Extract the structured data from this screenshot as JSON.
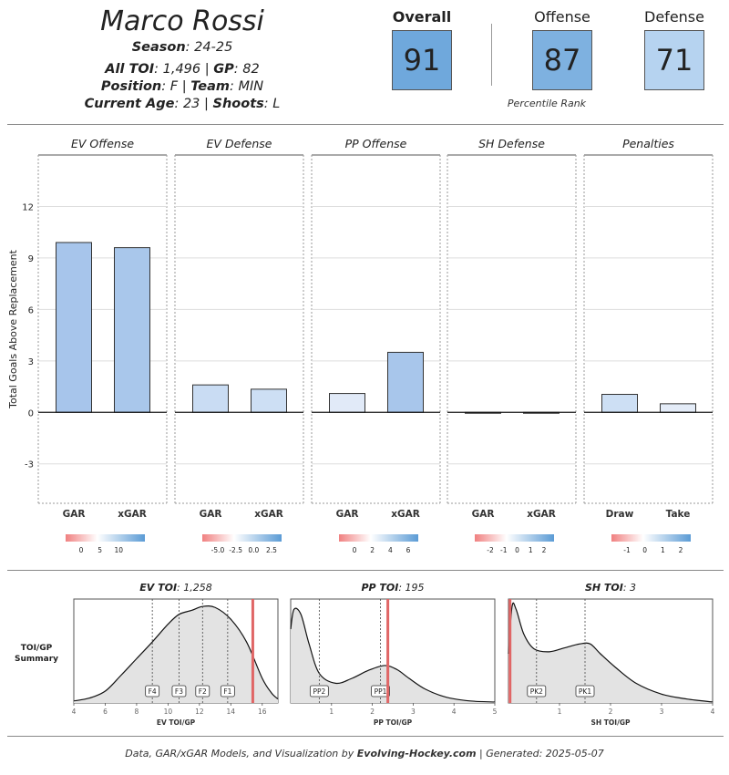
{
  "header": {
    "player_name": "Marco Rossi",
    "season_label": "Season",
    "season_value": "24-25",
    "toi_label": "All TOI",
    "toi_value": "1,496",
    "gp_label": "GP",
    "gp_value": "82",
    "position_label": "Position",
    "position_value": "F",
    "team_label": "Team",
    "team_value": "MIN",
    "age_label": "Current Age",
    "age_value": "23",
    "shoots_label": "Shoots",
    "shoots_value": "L"
  },
  "ranks": {
    "overall": {
      "label": "Overall",
      "value": "91",
      "color": "#6fa8dc"
    },
    "offense": {
      "label": "Offense",
      "value": "87",
      "color": "#7eb1e0"
    },
    "defense": {
      "label": "Defense",
      "value": "71",
      "color": "#b6d3f0"
    },
    "caption": "Percentile Rank"
  },
  "chart_data": [
    {
      "type": "bar",
      "ylabel": "Total Goals Above Replacement",
      "y_ticks": [
        12,
        9,
        6,
        3,
        0,
        -3
      ],
      "ylim": [
        -5.3,
        15
      ],
      "panels": [
        {
          "title": "EV Offense",
          "categories": [
            "GAR",
            "xGAR"
          ],
          "values": [
            9.9,
            9.6
          ],
          "colors": [
            "#a7c5eb",
            "#a9c7eb"
          ],
          "legend_ticks": [
            "0",
            "5",
            "10"
          ]
        },
        {
          "title": "EV Defense",
          "categories": [
            "GAR",
            "xGAR"
          ],
          "values": [
            1.6,
            1.35
          ],
          "colors": [
            "#c9dcf3",
            "#cddff4"
          ],
          "legend_ticks": [
            "-5.0",
            "-2.5",
            "0.0",
            "2.5"
          ]
        },
        {
          "title": "PP Offense",
          "categories": [
            "GAR",
            "xGAR"
          ],
          "values": [
            1.1,
            3.5
          ],
          "colors": [
            "#e1eaf8",
            "#a8c6eb"
          ],
          "legend_ticks": [
            "0",
            "2",
            "4",
            "6"
          ]
        },
        {
          "title": "SH Defense",
          "categories": [
            "GAR",
            "xGAR"
          ],
          "values": [
            -0.05,
            -0.03
          ],
          "colors": [
            "#f2dcdc",
            "#ececf4"
          ],
          "legend_ticks": [
            "-2",
            "-1",
            "0",
            "1",
            "2"
          ]
        },
        {
          "title": "Penalties",
          "categories": [
            "Draw",
            "Take"
          ],
          "values": [
            1.05,
            0.5
          ],
          "colors": [
            "#cddff4",
            "#e4ecf8"
          ],
          "legend_ticks": [
            "-1",
            "0",
            "1",
            "2"
          ]
        }
      ]
    },
    {
      "type": "area",
      "row_label_line1": "TOI/GP",
      "row_label_line2": "Summary",
      "panels": [
        {
          "title_label": "EV TOI",
          "title_value": "1,258",
          "xlabel": "EV TOI/GP",
          "xlim": [
            4,
            17
          ],
          "x_ticks": [
            4,
            6,
            8,
            10,
            12,
            14,
            16
          ],
          "density": [
            [
              4,
              0.02
            ],
            [
              5,
              0.05
            ],
            [
              6,
              0.12
            ],
            [
              7,
              0.28
            ],
            [
              8,
              0.45
            ],
            [
              9,
              0.62
            ],
            [
              10,
              0.8
            ],
            [
              10.7,
              0.9
            ],
            [
              11.5,
              0.94
            ],
            [
              12.2,
              0.98
            ],
            [
              13,
              0.97
            ],
            [
              14,
              0.85
            ],
            [
              15,
              0.62
            ],
            [
              16,
              0.25
            ],
            [
              16.6,
              0.1
            ],
            [
              17,
              0.04
            ]
          ],
          "markers": [
            {
              "label": "F4",
              "x": 9.0
            },
            {
              "label": "F3",
              "x": 10.7
            },
            {
              "label": "F2",
              "x": 12.2
            },
            {
              "label": "F1",
              "x": 13.8
            }
          ],
          "player_value": 15.4
        },
        {
          "title_label": "PP TOI",
          "title_value": "195",
          "xlabel": "PP TOI/GP",
          "xlim": [
            0,
            5
          ],
          "x_ticks": [
            1,
            2,
            3,
            4,
            5
          ],
          "density": [
            [
              0,
              0.75
            ],
            [
              0.08,
              0.95
            ],
            [
              0.25,
              0.9
            ],
            [
              0.45,
              0.6
            ],
            [
              0.7,
              0.3
            ],
            [
              1.1,
              0.2
            ],
            [
              1.5,
              0.25
            ],
            [
              1.9,
              0.33
            ],
            [
              2.3,
              0.38
            ],
            [
              2.6,
              0.34
            ],
            [
              2.9,
              0.25
            ],
            [
              3.3,
              0.14
            ],
            [
              3.8,
              0.06
            ],
            [
              4.4,
              0.02
            ],
            [
              5,
              0.01
            ]
          ],
          "markers": [
            {
              "label": "PP2",
              "x": 0.7
            },
            {
              "label": "PP1",
              "x": 2.2
            }
          ],
          "player_value": 2.38
        },
        {
          "title_label": "SH TOI",
          "title_value": "3",
          "xlabel": "SH TOI/GP",
          "xlim": [
            0,
            4
          ],
          "x_ticks": [
            1,
            2,
            3,
            4
          ],
          "density": [
            [
              0,
              0.5
            ],
            [
              0.07,
              0.98
            ],
            [
              0.15,
              0.95
            ],
            [
              0.3,
              0.7
            ],
            [
              0.5,
              0.55
            ],
            [
              0.8,
              0.52
            ],
            [
              1.1,
              0.56
            ],
            [
              1.4,
              0.6
            ],
            [
              1.6,
              0.6
            ],
            [
              1.8,
              0.5
            ],
            [
              2.1,
              0.36
            ],
            [
              2.5,
              0.2
            ],
            [
              3,
              0.09
            ],
            [
              3.5,
              0.04
            ],
            [
              4,
              0.01
            ]
          ],
          "markers": [
            {
              "label": "PK2",
              "x": 0.55
            },
            {
              "label": "PK1",
              "x": 1.5
            }
          ],
          "player_value": 0.03
        }
      ]
    }
  ],
  "colors": {
    "player_line": "#e06666",
    "grid": "#dddddd",
    "axis": "#222222",
    "density_fill": "#e3e3e3"
  },
  "footer": {
    "prefix": "Data, GAR/xGAR Models, and Visualization by",
    "brand": "Evolving-Hockey.com",
    "suffix": "| Generated: 2025-05-07"
  }
}
